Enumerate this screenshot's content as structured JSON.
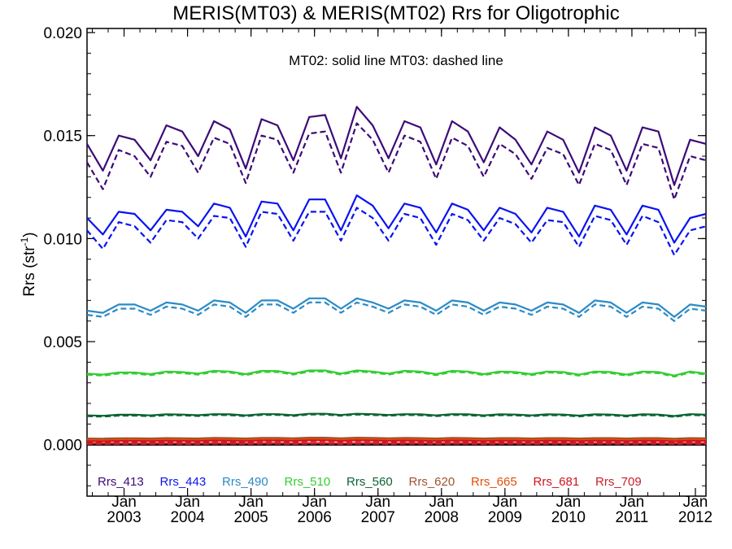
{
  "chart_data": {
    "type": "line",
    "title": "MERIS(MT03) & MERIS(MT02)  Rrs for Oligotrophic",
    "annotation": "MT02: solid line   MT03: dashed line",
    "ylabel": "Rrs (str",
    "ylabel_superscript": "-1",
    "ylabel_suffix": ")",
    "ylim": [
      -0.0025,
      0.0202
    ],
    "xlim": [
      "2002-06",
      "2012-03"
    ],
    "yticks": [
      {
        "value": 0.0,
        "label": "0.000"
      },
      {
        "value": 0.005,
        "label": "0.005"
      },
      {
        "value": 0.01,
        "label": "0.010"
      },
      {
        "value": 0.015,
        "label": "0.015"
      },
      {
        "value": 0.02,
        "label": "0.020"
      }
    ],
    "xticks": [
      {
        "date": "2003-01",
        "month": "Jan",
        "year": "2003"
      },
      {
        "date": "2004-01",
        "month": "Jan",
        "year": "2004"
      },
      {
        "date": "2005-01",
        "month": "Jan",
        "year": "2005"
      },
      {
        "date": "2006-01",
        "month": "Jan",
        "year": "2006"
      },
      {
        "date": "2007-01",
        "month": "Jan",
        "year": "2007"
      },
      {
        "date": "2008-01",
        "month": "Jan",
        "year": "2008"
      },
      {
        "date": "2009-01",
        "month": "Jan",
        "year": "2009"
      },
      {
        "date": "2010-01",
        "month": "Jan",
        "year": "2010"
      },
      {
        "date": "2011-01",
        "month": "Jan",
        "year": "2011"
      },
      {
        "date": "2012-01",
        "month": "Jan",
        "year": "2012"
      }
    ],
    "zero_line": 0.0,
    "x": [
      "2002-06",
      "2002-09",
      "2002-12",
      "2003-03",
      "2003-06",
      "2003-09",
      "2003-12",
      "2004-03",
      "2004-06",
      "2004-09",
      "2004-12",
      "2005-03",
      "2005-06",
      "2005-09",
      "2005-12",
      "2006-03",
      "2006-06",
      "2006-09",
      "2006-12",
      "2007-03",
      "2007-06",
      "2007-09",
      "2007-12",
      "2008-03",
      "2008-06",
      "2008-09",
      "2008-12",
      "2009-03",
      "2009-06",
      "2009-09",
      "2009-12",
      "2010-03",
      "2010-06",
      "2010-09",
      "2010-12",
      "2011-03",
      "2011-06",
      "2011-09",
      "2011-12",
      "2012-03"
    ],
    "series": [
      {
        "name": "Rrs_413",
        "color": "#3d0a78",
        "MT02": [
          0.0146,
          0.0133,
          0.015,
          0.0148,
          0.0138,
          0.0155,
          0.0152,
          0.014,
          0.0157,
          0.0153,
          0.0134,
          0.0158,
          0.0155,
          0.0138,
          0.0159,
          0.016,
          0.0139,
          0.0164,
          0.0155,
          0.0139,
          0.0157,
          0.0154,
          0.0136,
          0.0157,
          0.0152,
          0.0137,
          0.0154,
          0.0148,
          0.0136,
          0.0152,
          0.0148,
          0.0132,
          0.0154,
          0.015,
          0.0133,
          0.0154,
          0.0152,
          0.0126,
          0.0148,
          0.0146
        ],
        "MT03": [
          0.0137,
          0.0124,
          0.0143,
          0.014,
          0.013,
          0.0147,
          0.0145,
          0.0132,
          0.0149,
          0.0146,
          0.0127,
          0.015,
          0.0148,
          0.0132,
          0.0151,
          0.0152,
          0.0132,
          0.0156,
          0.0148,
          0.0132,
          0.015,
          0.0147,
          0.0129,
          0.0149,
          0.0145,
          0.013,
          0.0146,
          0.0141,
          0.0129,
          0.0144,
          0.0141,
          0.0126,
          0.0146,
          0.0143,
          0.0126,
          0.0146,
          0.0144,
          0.0119,
          0.014,
          0.0138
        ]
      },
      {
        "name": "Rrs_443",
        "color": "#0a14f0",
        "MT02": [
          0.011,
          0.0102,
          0.0113,
          0.0112,
          0.0104,
          0.0114,
          0.0113,
          0.0106,
          0.0117,
          0.0115,
          0.0101,
          0.0118,
          0.0117,
          0.0104,
          0.0119,
          0.0119,
          0.0104,
          0.0121,
          0.0116,
          0.0105,
          0.0117,
          0.0115,
          0.0103,
          0.0117,
          0.0114,
          0.0104,
          0.0115,
          0.0112,
          0.0103,
          0.0115,
          0.0113,
          0.0101,
          0.0116,
          0.0114,
          0.0102,
          0.0116,
          0.0114,
          0.0098,
          0.011,
          0.0112
        ],
        "MT03": [
          0.0104,
          0.0095,
          0.0108,
          0.0106,
          0.0098,
          0.0109,
          0.0108,
          0.01,
          0.0111,
          0.011,
          0.0096,
          0.0113,
          0.0112,
          0.0099,
          0.0113,
          0.0113,
          0.0099,
          0.0115,
          0.011,
          0.0099,
          0.0112,
          0.011,
          0.0097,
          0.0112,
          0.0109,
          0.0099,
          0.011,
          0.0107,
          0.0098,
          0.0109,
          0.0108,
          0.0096,
          0.0111,
          0.0109,
          0.0097,
          0.0111,
          0.0108,
          0.0092,
          0.0104,
          0.0106
        ]
      },
      {
        "name": "Rrs_490",
        "color": "#2b8bc6",
        "MT02": [
          0.0065,
          0.0064,
          0.0068,
          0.0068,
          0.0065,
          0.0069,
          0.0068,
          0.0065,
          0.007,
          0.0069,
          0.0064,
          0.007,
          0.007,
          0.0066,
          0.0071,
          0.0071,
          0.0066,
          0.0071,
          0.0069,
          0.0066,
          0.007,
          0.0069,
          0.0065,
          0.007,
          0.0069,
          0.0065,
          0.0069,
          0.0068,
          0.0065,
          0.0069,
          0.0068,
          0.0064,
          0.007,
          0.0069,
          0.0064,
          0.0069,
          0.0068,
          0.0062,
          0.0068,
          0.0067
        ],
        "MT03": [
          0.0063,
          0.0062,
          0.0066,
          0.0066,
          0.0063,
          0.0067,
          0.0066,
          0.0063,
          0.0068,
          0.0067,
          0.0062,
          0.0068,
          0.0068,
          0.0064,
          0.0069,
          0.0069,
          0.0064,
          0.0069,
          0.0067,
          0.0064,
          0.0068,
          0.0067,
          0.0063,
          0.0068,
          0.0067,
          0.0063,
          0.0067,
          0.0066,
          0.0063,
          0.0067,
          0.0066,
          0.0062,
          0.0068,
          0.0067,
          0.0062,
          0.0067,
          0.0066,
          0.006,
          0.0066,
          0.0065
        ]
      },
      {
        "name": "Rrs_510",
        "color": "#32cd32",
        "MT02": [
          0.00345,
          0.0034,
          0.0035,
          0.0035,
          0.00342,
          0.00355,
          0.00352,
          0.00345,
          0.00358,
          0.00355,
          0.00342,
          0.00358,
          0.00357,
          0.00345,
          0.0036,
          0.0036,
          0.00345,
          0.0036,
          0.00355,
          0.00345,
          0.00358,
          0.00355,
          0.00342,
          0.00358,
          0.00355,
          0.00342,
          0.00355,
          0.00352,
          0.00342,
          0.00355,
          0.00352,
          0.0034,
          0.00355,
          0.00352,
          0.0034,
          0.00355,
          0.00352,
          0.00335,
          0.00355,
          0.00345
        ],
        "MT03": [
          0.0034,
          0.00335,
          0.00345,
          0.00345,
          0.00337,
          0.0035,
          0.00347,
          0.0034,
          0.00353,
          0.0035,
          0.00337,
          0.00353,
          0.00352,
          0.0034,
          0.00355,
          0.00355,
          0.0034,
          0.00355,
          0.0035,
          0.0034,
          0.00353,
          0.0035,
          0.00337,
          0.00353,
          0.0035,
          0.00337,
          0.0035,
          0.00347,
          0.00337,
          0.0035,
          0.00347,
          0.00335,
          0.0035,
          0.00347,
          0.00335,
          0.0035,
          0.00347,
          0.0033,
          0.0035,
          0.0034
        ]
      },
      {
        "name": "Rrs_560",
        "color": "#0a6432",
        "MT02": [
          0.00142,
          0.0014,
          0.00145,
          0.00145,
          0.00142,
          0.00147,
          0.00146,
          0.00143,
          0.00148,
          0.00147,
          0.00142,
          0.00148,
          0.00148,
          0.00143,
          0.0015,
          0.0015,
          0.00144,
          0.0015,
          0.00148,
          0.00144,
          0.00148,
          0.00147,
          0.00142,
          0.00148,
          0.00147,
          0.00142,
          0.00147,
          0.00146,
          0.00142,
          0.00147,
          0.00146,
          0.00141,
          0.00147,
          0.00146,
          0.00141,
          0.00147,
          0.00146,
          0.00139,
          0.00148,
          0.00145
        ],
        "MT03": [
          0.00138,
          0.00136,
          0.00141,
          0.00141,
          0.00138,
          0.00143,
          0.00142,
          0.00139,
          0.00144,
          0.00143,
          0.00138,
          0.00144,
          0.00144,
          0.00139,
          0.00146,
          0.00146,
          0.0014,
          0.00146,
          0.00144,
          0.0014,
          0.00144,
          0.00143,
          0.00138,
          0.00144,
          0.00143,
          0.00138,
          0.00143,
          0.00142,
          0.00138,
          0.00143,
          0.00142,
          0.00137,
          0.00143,
          0.00142,
          0.00137,
          0.00143,
          0.00142,
          0.00135,
          0.00144,
          0.00141
        ]
      },
      {
        "name": "Rrs_620",
        "color": "#a0522d",
        "MT02": [
          0.0003,
          0.00029,
          0.00031,
          0.00031,
          0.0003,
          0.00032,
          0.00031,
          0.0003,
          0.00033,
          0.00032,
          0.0003,
          0.00033,
          0.00033,
          0.00031,
          0.00034,
          0.00034,
          0.00031,
          0.00034,
          0.00033,
          0.00031,
          0.00033,
          0.00032,
          0.0003,
          0.00033,
          0.00032,
          0.0003,
          0.00032,
          0.00032,
          0.0003,
          0.00032,
          0.00032,
          0.0003,
          0.00032,
          0.00032,
          0.0003,
          0.00032,
          0.00032,
          0.00029,
          0.00032,
          0.00031
        ],
        "MT03": [
          0.00026,
          0.00025,
          0.00027,
          0.00027,
          0.00026,
          0.00028,
          0.00027,
          0.00026,
          0.00029,
          0.00028,
          0.00026,
          0.00029,
          0.00029,
          0.00027,
          0.0003,
          0.0003,
          0.00027,
          0.0003,
          0.00029,
          0.00027,
          0.00029,
          0.00028,
          0.00026,
          0.00029,
          0.00028,
          0.00026,
          0.00028,
          0.00028,
          0.00026,
          0.00028,
          0.00028,
          0.00026,
          0.00028,
          0.00028,
          0.00026,
          0.00028,
          0.00028,
          0.00025,
          0.00028,
          0.00027
        ]
      },
      {
        "name": "Rrs_665",
        "color": "#e0500a",
        "MT02": [
          0.00022,
          0.00021,
          0.00023,
          0.00023,
          0.00022,
          0.00024,
          0.00023,
          0.00022,
          0.00025,
          0.00024,
          0.00022,
          0.00025,
          0.00025,
          0.00023,
          0.00026,
          0.00026,
          0.00023,
          0.00026,
          0.00025,
          0.00023,
          0.00025,
          0.00024,
          0.00022,
          0.00025,
          0.00024,
          0.00022,
          0.00024,
          0.00024,
          0.00022,
          0.00024,
          0.00024,
          0.00022,
          0.00024,
          0.00024,
          0.00022,
          0.00024,
          0.00024,
          0.00021,
          0.00024,
          0.00023
        ],
        "MT03": [
          0.00018,
          0.00017,
          0.00019,
          0.00019,
          0.00018,
          0.0002,
          0.00019,
          0.00018,
          0.00021,
          0.0002,
          0.00018,
          0.00021,
          0.00021,
          0.00019,
          0.00022,
          0.00022,
          0.00019,
          0.00022,
          0.00021,
          0.00019,
          0.00021,
          0.0002,
          0.00018,
          0.00021,
          0.0002,
          0.00018,
          0.0002,
          0.0002,
          0.00018,
          0.0002,
          0.0002,
          0.00018,
          0.0002,
          0.0002,
          0.00018,
          0.0002,
          0.0002,
          0.00017,
          0.0002,
          0.00019
        ]
      },
      {
        "name": "Rrs_681",
        "color": "#d2141e",
        "MT02": [
          0.00017,
          0.00016,
          0.00018,
          0.00018,
          0.00017,
          0.00019,
          0.00018,
          0.00017,
          0.0002,
          0.00019,
          0.00017,
          0.0002,
          0.0002,
          0.00018,
          0.00021,
          0.00021,
          0.00018,
          0.00021,
          0.0002,
          0.00018,
          0.0002,
          0.00019,
          0.00017,
          0.0002,
          0.00019,
          0.00017,
          0.00019,
          0.00019,
          0.00017,
          0.00019,
          0.00019,
          0.00017,
          0.00019,
          0.00019,
          0.00017,
          0.00019,
          0.00019,
          0.00016,
          0.00019,
          0.00018
        ],
        "MT03": [
          0.00013,
          0.00012,
          0.00014,
          0.00014,
          0.00013,
          0.00015,
          0.00014,
          0.00013,
          0.00016,
          0.00015,
          0.00013,
          0.00016,
          0.00016,
          0.00014,
          0.00017,
          0.00017,
          0.00014,
          0.00017,
          0.00016,
          0.00014,
          0.00016,
          0.00015,
          0.00013,
          0.00016,
          0.00015,
          0.00013,
          0.00015,
          0.00015,
          0.00013,
          0.00015,
          0.00015,
          0.00013,
          0.00015,
          0.00015,
          0.00013,
          0.00015,
          0.00015,
          0.00012,
          0.00015,
          0.00014
        ]
      },
      {
        "name": "Rrs_709",
        "color": "#c81e28",
        "MT02": [
          6e-05,
          6e-05,
          6e-05,
          6e-05,
          6e-05,
          7e-05,
          6e-05,
          6e-05,
          7e-05,
          7e-05,
          6e-05,
          7e-05,
          7e-05,
          6e-05,
          7e-05,
          7e-05,
          6e-05,
          7e-05,
          7e-05,
          6e-05,
          7e-05,
          7e-05,
          6e-05,
          7e-05,
          7e-05,
          6e-05,
          7e-05,
          7e-05,
          6e-05,
          7e-05,
          7e-05,
          6e-05,
          7e-05,
          7e-05,
          6e-05,
          7e-05,
          7e-05,
          6e-05,
          7e-05,
          6e-05
        ],
        "MT03": [
          3e-05,
          3e-05,
          3e-05,
          3e-05,
          3e-05,
          4e-05,
          3e-05,
          3e-05,
          4e-05,
          4e-05,
          3e-05,
          4e-05,
          4e-05,
          3e-05,
          4e-05,
          4e-05,
          3e-05,
          4e-05,
          4e-05,
          3e-05,
          4e-05,
          4e-05,
          3e-05,
          4e-05,
          4e-05,
          3e-05,
          4e-05,
          4e-05,
          3e-05,
          4e-05,
          4e-05,
          3e-05,
          4e-05,
          4e-05,
          3e-05,
          4e-05,
          4e-05,
          3e-05,
          4e-05,
          3e-05
        ]
      }
    ],
    "legend_placement": "bottom-inside"
  }
}
